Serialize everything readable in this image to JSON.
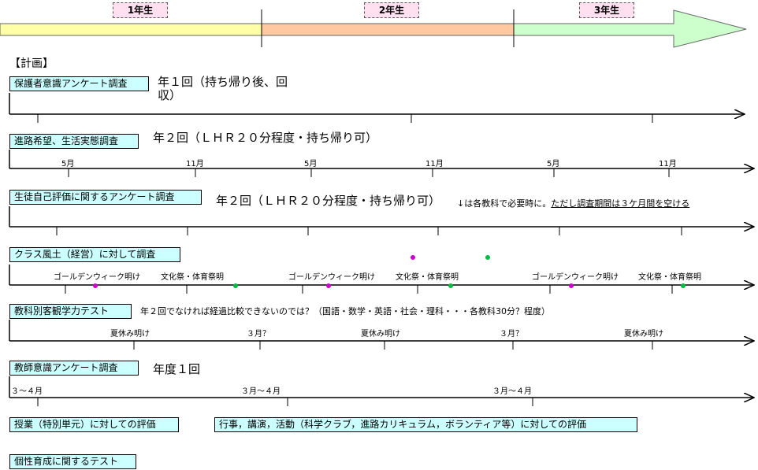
{
  "grades": [
    "1年生",
    "2年生",
    "3年生"
  ],
  "plan_heading": "【計画】",
  "rows": [
    {
      "label": "保護者意識アンケート調査",
      "note": "年１回（持ち帰り後、回収）"
    },
    {
      "label": "進路希望、生活実態調査",
      "note": "年２回（ＬＨＲ２０分程度・持ち帰り可）",
      "ticks": [
        "5月",
        "11月",
        "5月",
        "11月",
        "5月",
        "11月"
      ]
    },
    {
      "label": "生徒自己評価に関するアンケート調査",
      "note": "年２回（ＬＨＲ２０分程度・持ち帰り可）",
      "remark": "↓は各教科で必要時に。",
      "remark_underlined": "ただし調査期間は３ケ月間を空ける"
    },
    {
      "label": "クラス風土（経営）に対して調査",
      "ticks": [
        "ゴールデンウィーク明け",
        "文化祭・体育祭明",
        "ゴールデンウィーク明け",
        "文化祭・体育祭明",
        "ゴールデンウィーク明け",
        "文化祭・体育祭明"
      ]
    },
    {
      "label": "教科別客観学力テスト",
      "note": "年２回でなければ経過比較できないのでは？（国語・数学・英語・社会・理科・・・各教科30分？程度）",
      "ticks": [
        "夏休み明け",
        "３月？",
        "夏休み明け",
        "３月？",
        "夏休み明け"
      ]
    },
    {
      "label": "教師意識アンケート調査",
      "note": "年度１回",
      "ticks": [
        "３～４月",
        "３月～４月",
        "３月～４月"
      ]
    }
  ],
  "items": [
    "授業（特別単元）に対しての評価",
    "行事，講演，活動（科学クラブ，進路カリキュラム，ボランティア等）に対しての評価",
    "個性育成に関するテスト"
  ]
}
